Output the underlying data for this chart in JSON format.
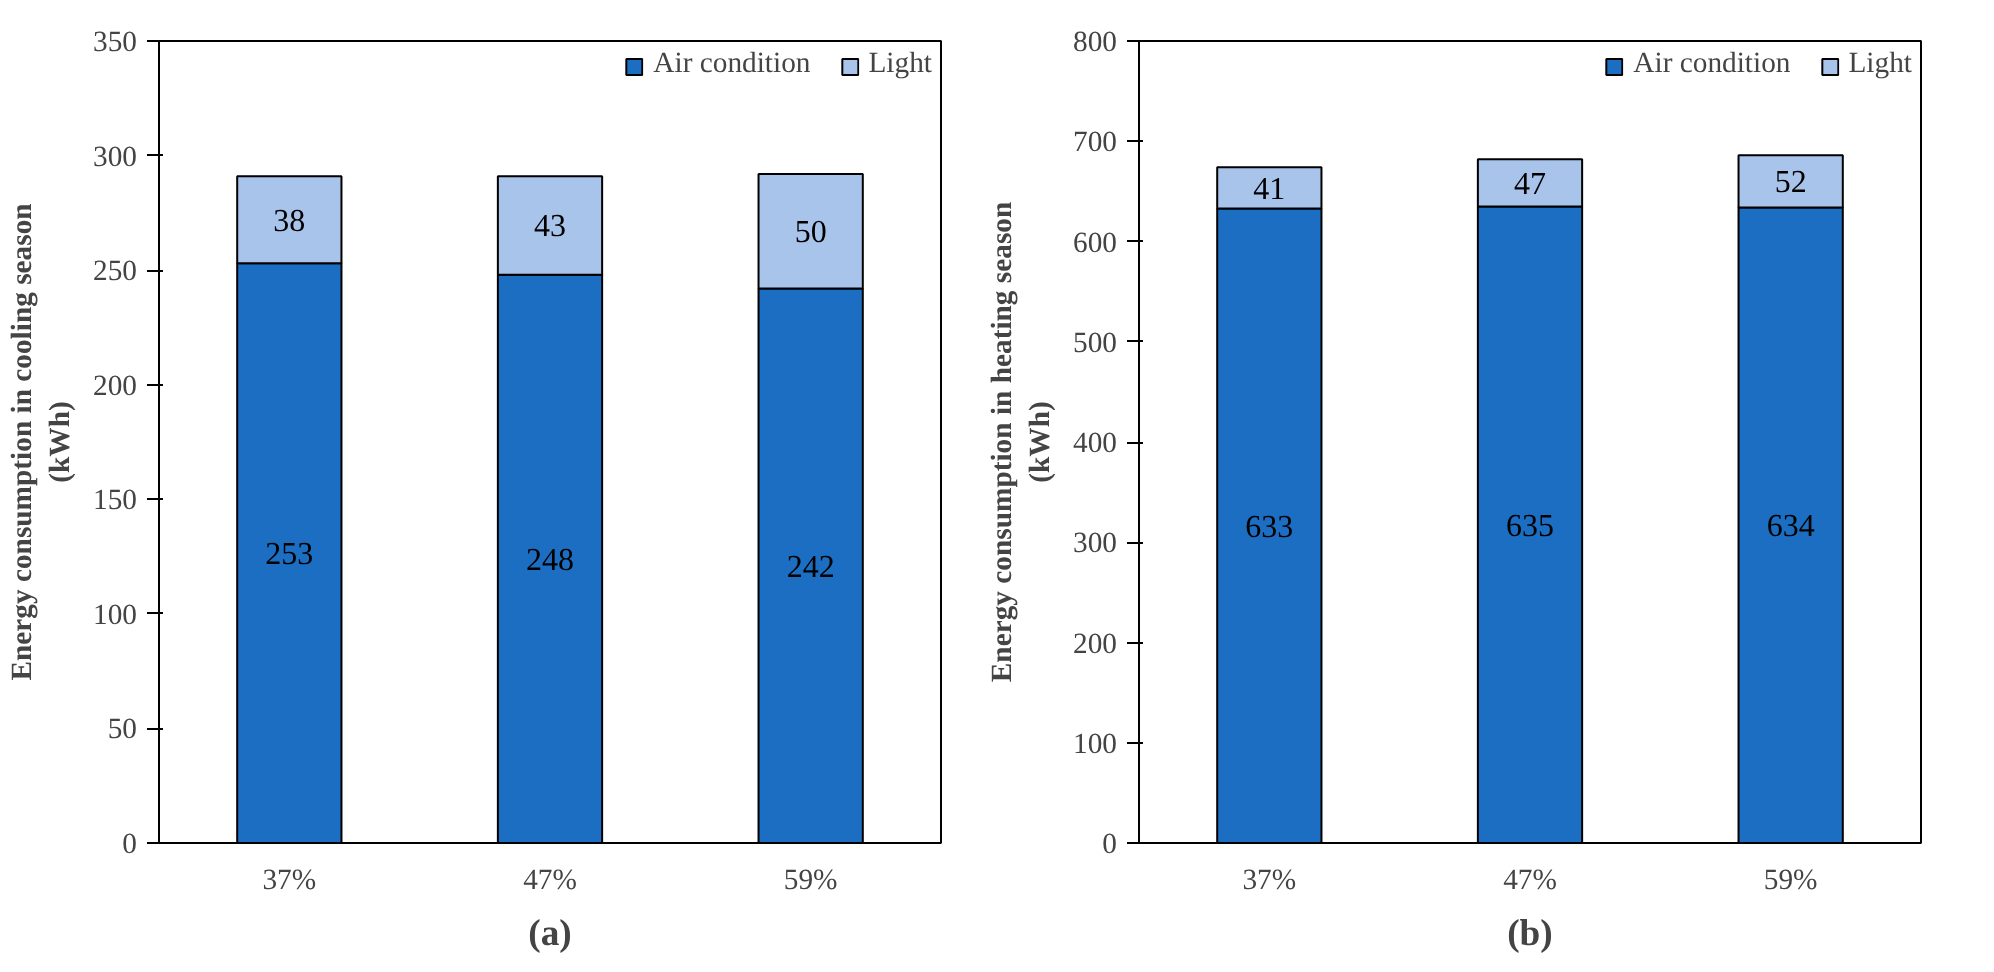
{
  "chart_data": [
    {
      "type": "bar",
      "stacked": true,
      "xlabel": "(a)",
      "ylabel": "Energy consumption in cooling season\n(kWh)",
      "categories": [
        "37%",
        "47%",
        "59%"
      ],
      "series": [
        {
          "name": "Air condition",
          "color": "#1b6ec2",
          "values": [
            253,
            248,
            242
          ]
        },
        {
          "name": "Light",
          "color": "#a9c4eb",
          "values": [
            38,
            43,
            50
          ]
        }
      ],
      "ylim": [
        0,
        350
      ],
      "yticks": [
        0,
        50,
        100,
        150,
        200,
        250,
        300,
        350
      ],
      "data_labels": true,
      "legend": "top right",
      "grid": false
    },
    {
      "type": "bar",
      "stacked": true,
      "xlabel": "(b)",
      "ylabel": "Energy consumption in heating season\n(kWh)",
      "categories": [
        "37%",
        "47%",
        "59%"
      ],
      "series": [
        {
          "name": "Air condition",
          "color": "#1b6ec2",
          "values": [
            633,
            635,
            634
          ]
        },
        {
          "name": "Light",
          "color": "#a9c4eb",
          "values": [
            41,
            47,
            52
          ]
        }
      ],
      "ylim": [
        0,
        800
      ],
      "yticks": [
        0,
        100,
        200,
        300,
        400,
        500,
        600,
        700,
        800
      ],
      "data_labels": true,
      "legend": "top right",
      "grid": false
    }
  ]
}
